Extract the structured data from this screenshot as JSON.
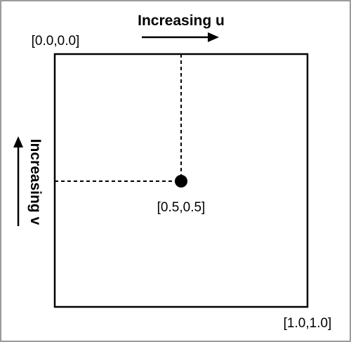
{
  "labels": {
    "u_axis": "Increasing u",
    "v_axis": "Increasing v",
    "top_left_coord": "[0.0,0.0]",
    "center_coord": "[0.5,0.5]",
    "bottom_right_coord": "[1.0,1.0]"
  },
  "colors": {
    "ink": "#000000",
    "frame_border": "#7a7a7a",
    "background": "#ffffff"
  },
  "icons": {
    "u_arrow": "arrow-right-icon",
    "v_arrow": "arrow-up-icon",
    "center_point": "filled-circle-marker"
  }
}
